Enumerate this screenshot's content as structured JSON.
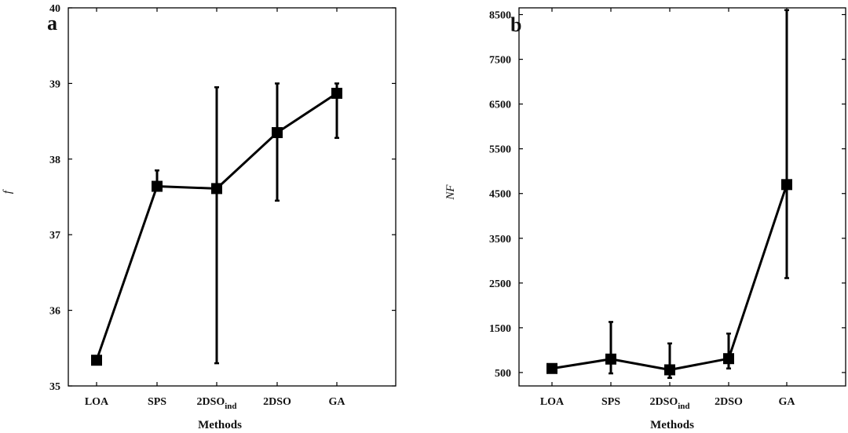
{
  "chart_data": [
    {
      "type": "line",
      "panel_label": "a",
      "xlabel": "Methods",
      "ylabel": "f",
      "categories": [
        "LOA",
        "SPS",
        "2DSO_ind",
        "2DSO",
        "GA"
      ],
      "category_labels": [
        {
          "main": "LOA",
          "sub": ""
        },
        {
          "main": "SPS",
          "sub": ""
        },
        {
          "main": "2DSO",
          "sub": "ind"
        },
        {
          "main": "2DSO",
          "sub": ""
        },
        {
          "main": "GA",
          "sub": ""
        }
      ],
      "values": [
        35.34,
        37.64,
        37.61,
        38.35,
        38.87
      ],
      "error_low": [
        null,
        37.62,
        35.3,
        37.45,
        38.28
      ],
      "error_high": [
        null,
        37.85,
        38.95,
        39.0,
        39.0
      ],
      "ylim": [
        35,
        40
      ],
      "yticks": [
        "35",
        "36",
        "37",
        "38",
        "39",
        "40"
      ],
      "grid": false,
      "color": "#000000"
    },
    {
      "type": "line",
      "panel_label": "b",
      "xlabel": "Methods",
      "ylabel": "NF",
      "categories": [
        "LOA",
        "SPS",
        "2DSO_ind",
        "2DSO",
        "GA"
      ],
      "category_labels": [
        {
          "main": "LOA",
          "sub": ""
        },
        {
          "main": "SPS",
          "sub": ""
        },
        {
          "main": "2DSO",
          "sub": "ind"
        },
        {
          "main": "2DSO",
          "sub": ""
        },
        {
          "main": "GA",
          "sub": ""
        }
      ],
      "values": [
        590,
        800,
        560,
        810,
        4700
      ],
      "error_low": [
        null,
        480,
        380,
        590,
        2610
      ],
      "error_high": [
        null,
        1630,
        1150,
        1370,
        8600
      ],
      "ylim": [
        200,
        8650
      ],
      "yticks": [
        "500",
        "1500",
        "2500",
        "3500",
        "4500",
        "5500",
        "6500",
        "7500",
        "8500"
      ],
      "grid": false,
      "color": "#000000"
    }
  ]
}
